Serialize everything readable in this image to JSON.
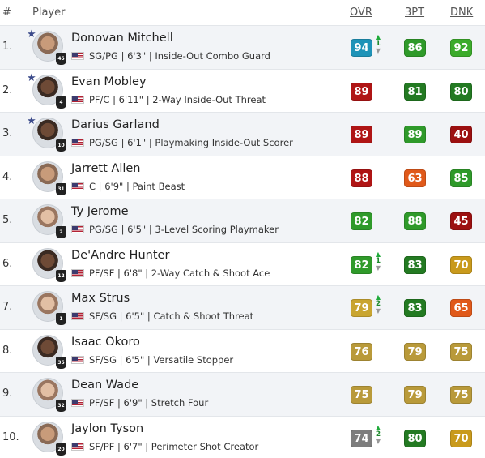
{
  "header": {
    "rank": "#",
    "player": "Player",
    "ovr": "OVR",
    "three_pt": "3PT",
    "dnk": "DNK"
  },
  "colors": {
    "teal": "#1e93b8",
    "red": "#b01515",
    "dark_red": "#9c1010",
    "green": "#2f9a2a",
    "dark_green": "#237a22",
    "bright_green": "#3cab2b",
    "orange": "#e0591a",
    "olive": "#c9a530",
    "gold": "#c99a1c",
    "tan": "#b99a3a",
    "gray": "#7d7d7d"
  },
  "rows": [
    {
      "rank": "1.",
      "name": "Donovan Mitchell",
      "meta": "SG/PG | 6'3\" | Inside-Out Combo Guard",
      "jersey": "45",
      "star": true,
      "ovr": "94",
      "ovr_color": "#1e93b8",
      "delta": "1",
      "three": "86",
      "three_color": "#2f9a2a",
      "dnk": "92",
      "dnk_color": "#3cab2b"
    },
    {
      "rank": "2.",
      "name": "Evan Mobley",
      "meta": "PF/C | 6'11\" | 2-Way Inside-Out Threat",
      "jersey": "4",
      "star": true,
      "ovr": "89",
      "ovr_color": "#b01515",
      "delta": "",
      "three": "81",
      "three_color": "#237a22",
      "dnk": "80",
      "dnk_color": "#237a22"
    },
    {
      "rank": "3.",
      "name": "Darius Garland",
      "meta": "PG/SG | 6'1\" | Playmaking Inside-Out Scorer",
      "jersey": "10",
      "star": true,
      "ovr": "89",
      "ovr_color": "#b01515",
      "delta": "",
      "three": "89",
      "three_color": "#2f9a2a",
      "dnk": "40",
      "dnk_color": "#9c1010"
    },
    {
      "rank": "4.",
      "name": "Jarrett Allen",
      "meta": "C | 6'9\" | Paint Beast",
      "jersey": "31",
      "star": false,
      "ovr": "88",
      "ovr_color": "#b01515",
      "delta": "",
      "three": "63",
      "three_color": "#e0591a",
      "dnk": "85",
      "dnk_color": "#2f9a2a"
    },
    {
      "rank": "5.",
      "name": "Ty Jerome",
      "meta": "PG/SG | 6'5\" | 3-Level Scoring Playmaker",
      "jersey": "2",
      "star": false,
      "ovr": "82",
      "ovr_color": "#2f9a2a",
      "delta": "",
      "three": "88",
      "three_color": "#2f9a2a",
      "dnk": "45",
      "dnk_color": "#9c1010"
    },
    {
      "rank": "6.",
      "name": "De'Andre Hunter",
      "meta": "PF/SF | 6'8\" | 2-Way Catch & Shoot Ace",
      "jersey": "12",
      "star": false,
      "ovr": "82",
      "ovr_color": "#2f9a2a",
      "delta": "1",
      "three": "83",
      "three_color": "#237a22",
      "dnk": "70",
      "dnk_color": "#c99a1c"
    },
    {
      "rank": "7.",
      "name": "Max Strus",
      "meta": "SF/SG | 6'5\" | Catch & Shoot Threat",
      "jersey": "1",
      "star": false,
      "ovr": "79",
      "ovr_color": "#c9a530",
      "delta": "2",
      "three": "83",
      "three_color": "#237a22",
      "dnk": "65",
      "dnk_color": "#e0591a"
    },
    {
      "rank": "8.",
      "name": "Isaac Okoro",
      "meta": "SF/SG | 6'5\" | Versatile Stopper",
      "jersey": "35",
      "star": false,
      "ovr": "76",
      "ovr_color": "#b99a3a",
      "delta": "",
      "three": "79",
      "three_color": "#b99a3a",
      "dnk": "75",
      "dnk_color": "#b99a3a"
    },
    {
      "rank": "9.",
      "name": "Dean Wade",
      "meta": "PF/SF | 6'9\" | Stretch Four",
      "jersey": "32",
      "star": false,
      "ovr": "75",
      "ovr_color": "#b99a3a",
      "delta": "",
      "three": "79",
      "three_color": "#b99a3a",
      "dnk": "75",
      "dnk_color": "#b99a3a"
    },
    {
      "rank": "10.",
      "name": "Jaylon Tyson",
      "meta": "SF/PF | 6'7\" | Perimeter Shot Creator",
      "jersey": "20",
      "star": false,
      "ovr": "74",
      "ovr_color": "#7d7d7d",
      "delta": "2",
      "three": "80",
      "three_color": "#237a22",
      "dnk": "70",
      "dnk_color": "#c99a1c"
    }
  ]
}
